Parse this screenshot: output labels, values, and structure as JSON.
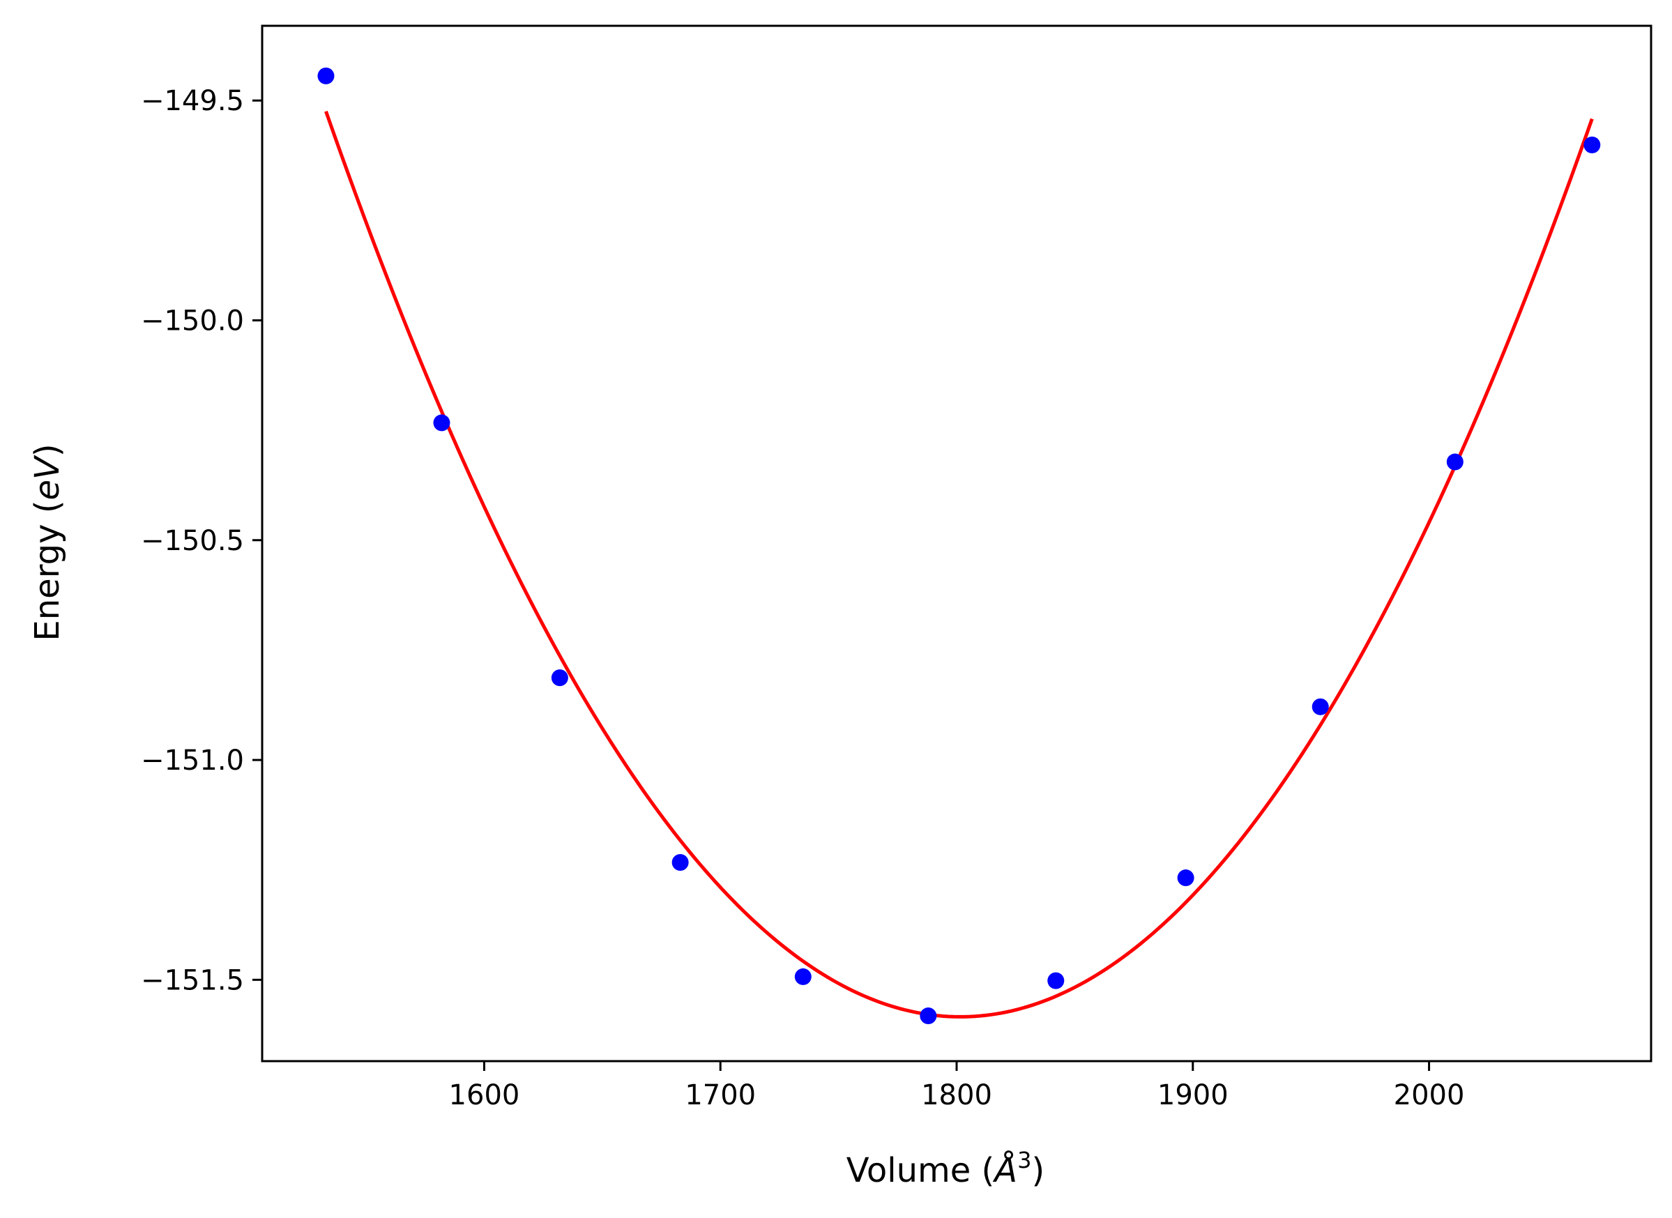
{
  "chart_data": {
    "type": "line",
    "title": "",
    "xlabel": "Volume",
    "xlabel_unit_base": "Å",
    "xlabel_unit_exp": "3",
    "ylabel": "Energy",
    "ylabel_unit": "eV",
    "xlim": [
      1506,
      2094
    ],
    "ylim": [
      -151.685,
      -149.33
    ],
    "xticks": [
      1600,
      1700,
      1800,
      1900,
      2000
    ],
    "xtick_labels": [
      "1600",
      "1700",
      "1800",
      "1900",
      "2000"
    ],
    "yticks": [
      -149.5,
      -150.0,
      -150.5,
      -151.0,
      -151.5
    ],
    "ytick_labels": [
      "−149.5",
      "−150.0",
      "−150.5",
      "−151.0",
      "−151.5"
    ],
    "grid": false,
    "legend": "none",
    "series": [
      {
        "kind": "scatter",
        "color": "#0000ff",
        "x": [
          1533,
          1582,
          1632,
          1683,
          1735,
          1788,
          1842,
          1897,
          1954,
          2011,
          2069
        ],
        "y": [
          -149.444,
          -150.233,
          -150.813,
          -151.233,
          -151.493,
          -151.582,
          -151.502,
          -151.268,
          -150.879,
          -150.322,
          -149.601
        ]
      },
      {
        "kind": "line",
        "color": "#ff0000",
        "fit": "parabola",
        "vertex_x": 1793,
        "vertex_y": -151.582,
        "x_range": [
          1533,
          2069
        ]
      }
    ]
  }
}
